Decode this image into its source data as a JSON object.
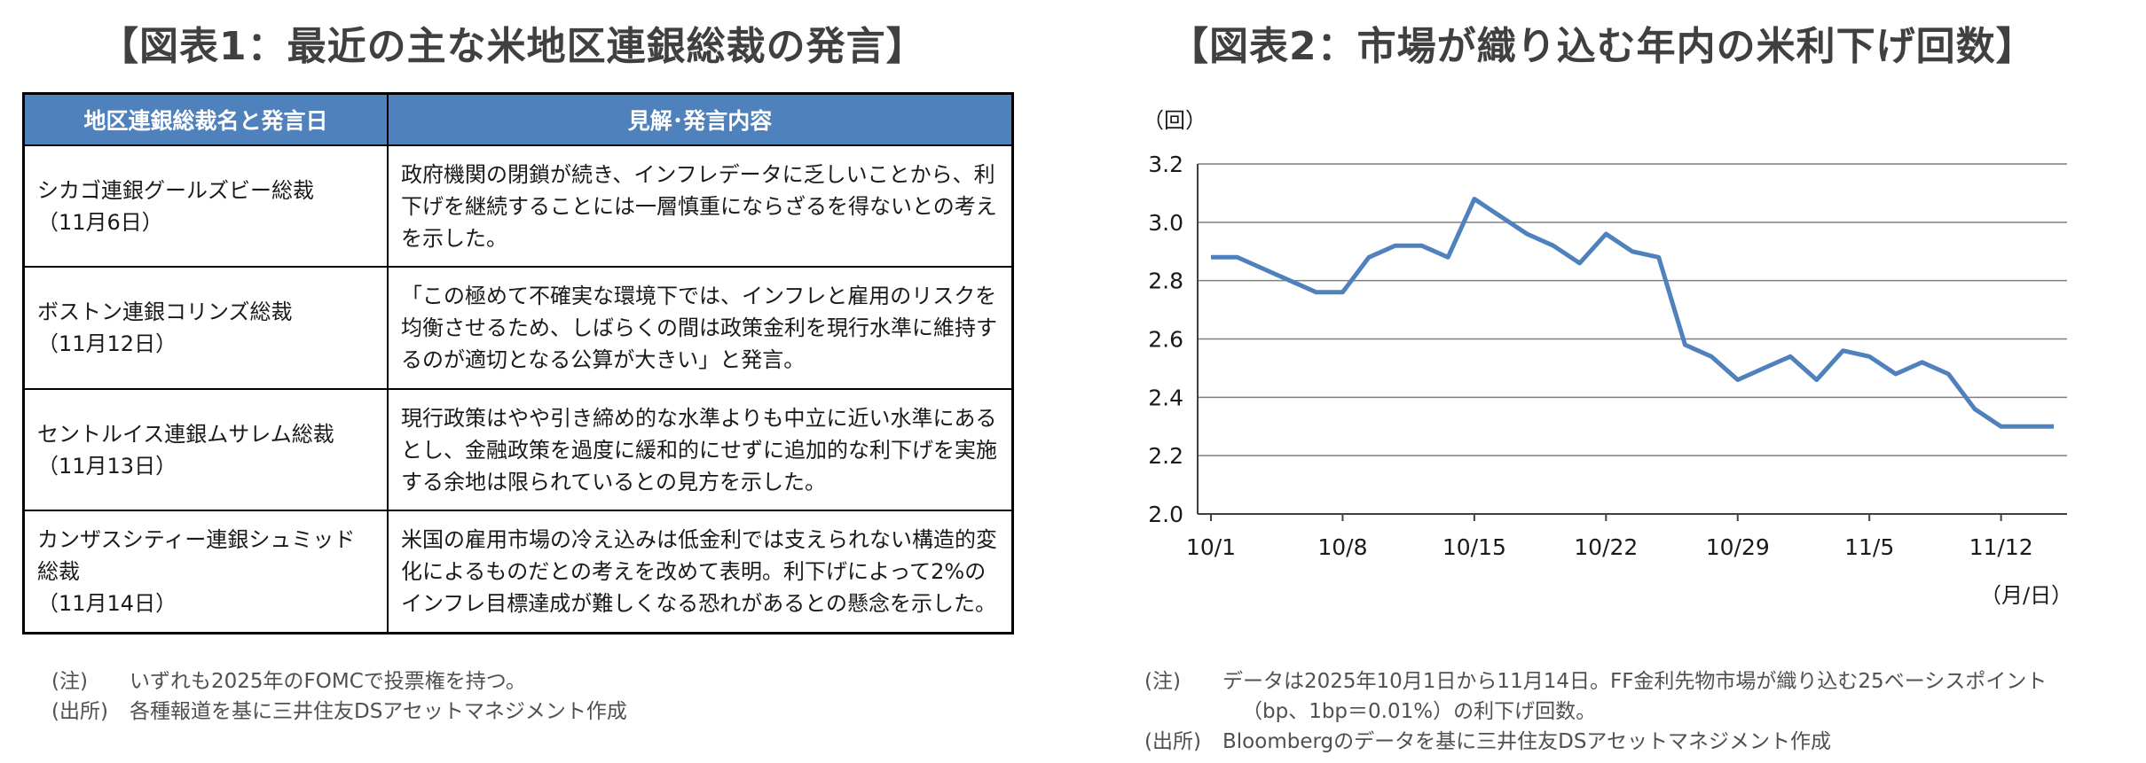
{
  "table_panel": {
    "title": "【図表1：最近の主な米地区連銀総裁の発言】",
    "headers": [
      "地区連銀総裁名と発言日",
      "見解･発言内容"
    ],
    "rows": [
      {
        "name": "シカゴ連銀グールズビー総裁",
        "date": "（11月6日）",
        "content": "政府機関の閉鎖が続き、インフレデータに乏しいことから、利下げを継続することには一層慎重にならざるを得ないとの考えを示した。"
      },
      {
        "name": "ボストン連銀コリンズ総裁",
        "date": "（11月12日）",
        "content": "「この極めて不確実な環境下では、インフレと雇用のリスクを均衡させるため、しばらくの間は政策金利を現行水準に維持するのが適切となる公算が大きい」と発言。"
      },
      {
        "name": "セントルイス連銀ムサレム総裁",
        "date": "（11月13日）",
        "content": "現行政策はやや引き締め的な水準よりも中立に近い水準にあるとし、金融政策を過度に緩和的にせずに追加的な利下げを実施する余地は限られているとの見方を示した。"
      },
      {
        "name": "カンザスシティー連銀シュミッド総裁",
        "date": "（11月14日）",
        "content": "米国の雇用市場の冷え込みは低金利では支えられない構造的変化によるものだとの考えを改めて表明。利下げによって2%のインフレ目標達成が難しくなる恐れがあるとの懸念を示した。"
      }
    ],
    "note_label": "(注)",
    "note_text": "いずれも2025年のFOMCで投票権を持つ。",
    "source_label": "(出所)",
    "source_text": "各種報道を基に三井住友DSアセットマネジメント作成"
  },
  "chart_panel": {
    "title": "【図表2：市場が織り込む年内の米利下げ回数】",
    "note_label": "(注)",
    "note_line1": "データは2025年10月1日から11月14日。FF金利先物市場が織り込む25ベーシスポイント",
    "note_line2": "（bp、1bp＝0.01%）の利下げ回数。",
    "source_label": "(出所)",
    "source_text": "Bloombergのデータを基に三井住友DSアセットマネジメント作成"
  },
  "chart_data": {
    "type": "line",
    "ylabel": "（回）",
    "xlabel": "（月/日）",
    "ylim": [
      2.0,
      3.2
    ],
    "yticks": [
      "2.0",
      "2.2",
      "2.4",
      "2.6",
      "2.8",
      "3.0",
      "3.2"
    ],
    "xticks": [
      "10/1",
      "10/8",
      "10/15",
      "10/22",
      "10/29",
      "11/5",
      "11/12"
    ],
    "grid": "horizontal",
    "line_color": "#4f81bd",
    "x": [
      "10/1",
      "10/2",
      "10/3",
      "10/6",
      "10/7",
      "10/8",
      "10/9",
      "10/10",
      "10/13",
      "10/14",
      "10/15",
      "10/16",
      "10/17",
      "10/20",
      "10/21",
      "10/22",
      "10/23",
      "10/24",
      "10/27",
      "10/28",
      "10/29",
      "10/30",
      "10/31",
      "11/3",
      "11/4",
      "11/5",
      "11/6",
      "11/7",
      "11/10",
      "11/11",
      "11/12",
      "11/13",
      "11/14"
    ],
    "y": [
      2.88,
      2.88,
      2.84,
      2.8,
      2.76,
      2.76,
      2.88,
      2.92,
      2.92,
      2.88,
      3.08,
      3.02,
      2.96,
      2.92,
      2.86,
      2.96,
      2.9,
      2.88,
      2.58,
      2.54,
      2.46,
      2.5,
      2.54,
      2.46,
      2.56,
      2.54,
      2.48,
      2.52,
      2.48,
      2.36,
      2.3,
      2.3,
      2.3
    ]
  }
}
